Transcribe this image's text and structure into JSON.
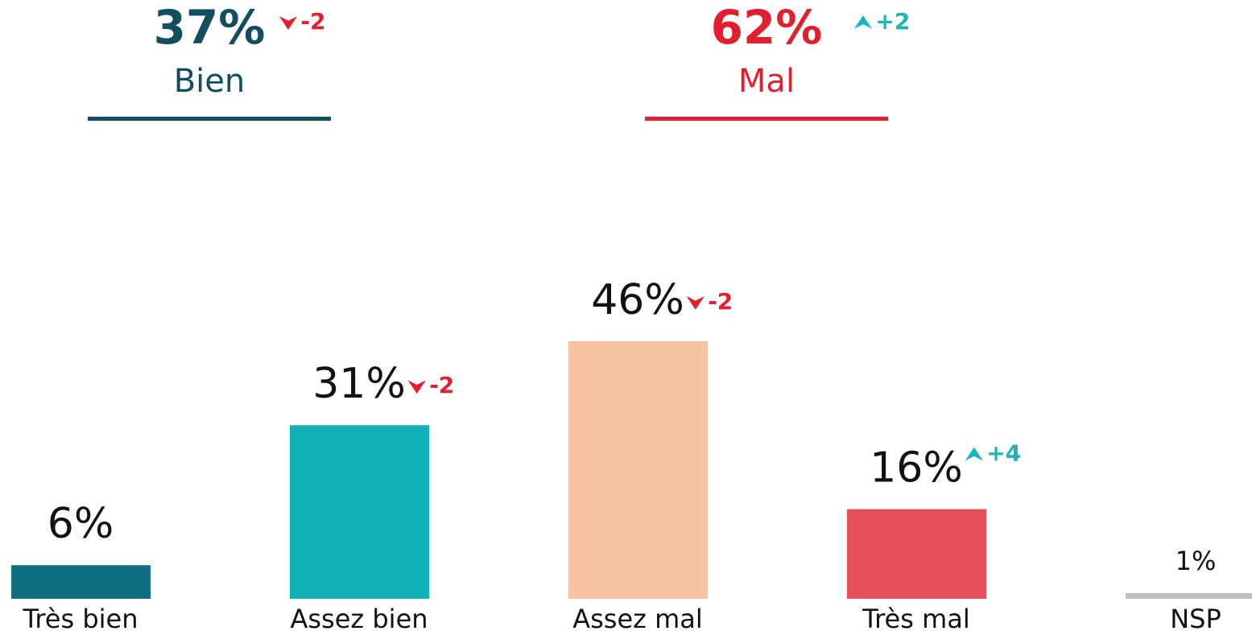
{
  "chart_data": {
    "type": "bar",
    "summary": [
      {
        "name": "Bien",
        "value_label": "37%",
        "change_label": "-2",
        "color": "#124e5e"
      },
      {
        "name": "Mal",
        "value_label": "62%",
        "change_label": "+2",
        "color": "#e0202f"
      }
    ],
    "categories": [
      "Très bien",
      "Assez bien",
      "Assez mal",
      "Très mal",
      "NSP"
    ],
    "values": [
      6,
      31,
      46,
      16,
      1
    ],
    "value_labels": [
      "6%",
      "31%",
      "46%",
      "16%",
      "1%"
    ],
    "change_labels": [
      null,
      "-2",
      "-2",
      "+4",
      null
    ],
    "colors": [
      "#0f6e80",
      "#13b0b8",
      "#f7c4a3",
      "#e65058",
      "#c0c0c0"
    ],
    "ylim": [
      0,
      50
    ]
  }
}
